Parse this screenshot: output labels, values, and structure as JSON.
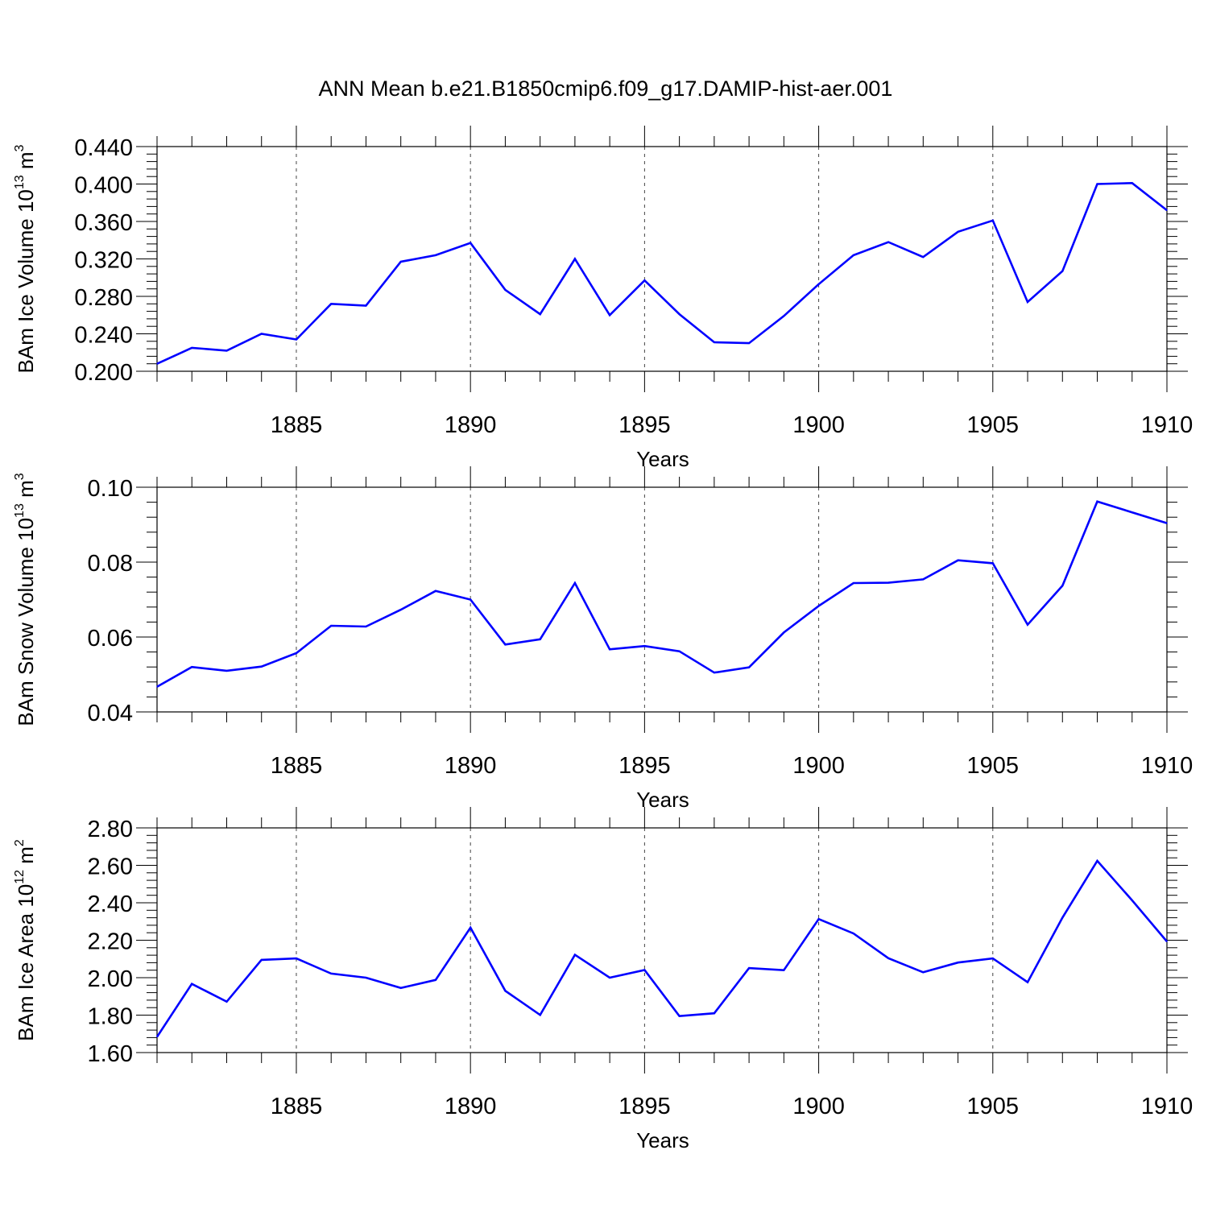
{
  "figure_title": "ANN Mean b.e21.B1850cmip6.f09_g17.DAMIP-hist-aer.001",
  "colors": {
    "line": "#0000ff",
    "axis": "#000000",
    "grid": "#444444"
  },
  "chart_data": [
    {
      "type": "line",
      "ylabel": {
        "main": "BAm Ice Volume 10",
        "exp": "13",
        "unit": " m",
        "unit_exp": "3"
      },
      "xlabel": "Years",
      "xlim": [
        1881,
        1910
      ],
      "ylim": [
        0.2,
        0.44
      ],
      "yticks": [
        0.2,
        0.24,
        0.28,
        0.32,
        0.36,
        0.4,
        0.44
      ],
      "ytick_labels": [
        "0.200",
        "0.240",
        "0.280",
        "0.320",
        "0.360",
        "0.400",
        "0.440"
      ],
      "xticks": [
        1885,
        1890,
        1895,
        1900,
        1905,
        1910
      ],
      "xtick_labels": [
        "1885",
        "1890",
        "1895",
        "1900",
        "1905",
        "1910"
      ],
      "grid": "dashed vertical at major x ticks",
      "x": [
        1881,
        1882,
        1883,
        1884,
        1885,
        1886,
        1887,
        1888,
        1889,
        1890,
        1891,
        1892,
        1893,
        1894,
        1895,
        1896,
        1897,
        1898,
        1899,
        1900,
        1901,
        1902,
        1903,
        1904,
        1905,
        1906,
        1907,
        1908,
        1909,
        1910
      ],
      "values": [
        0.208,
        0.225,
        0.222,
        0.24,
        0.234,
        0.272,
        0.27,
        0.317,
        0.324,
        0.337,
        0.287,
        0.261,
        0.32,
        0.26,
        0.297,
        0.261,
        0.231,
        0.23,
        0.259,
        0.293,
        0.324,
        0.338,
        0.322,
        0.349,
        0.361,
        0.274,
        0.307,
        0.4,
        0.401,
        0.372
      ]
    },
    {
      "type": "line",
      "ylabel": {
        "main": "BAm Snow Volume 10",
        "exp": "13",
        "unit": " m",
        "unit_exp": "3"
      },
      "xlabel": "Years",
      "xlim": [
        1881,
        1910
      ],
      "ylim": [
        0.04,
        0.1
      ],
      "yticks": [
        0.04,
        0.06,
        0.08,
        0.1
      ],
      "ytick_labels": [
        "0.04",
        "0.06",
        "0.08",
        "0.10"
      ],
      "xticks": [
        1885,
        1890,
        1895,
        1900,
        1905,
        1910
      ],
      "xtick_labels": [
        "1885",
        "1890",
        "1895",
        "1900",
        "1905",
        "1910"
      ],
      "grid": "dashed vertical at major x ticks",
      "x": [
        1881,
        1882,
        1883,
        1884,
        1885,
        1886,
        1887,
        1888,
        1889,
        1890,
        1891,
        1892,
        1893,
        1894,
        1895,
        1896,
        1897,
        1898,
        1899,
        1900,
        1901,
        1902,
        1903,
        1904,
        1905,
        1906,
        1907,
        1908,
        1909,
        1910
      ],
      "values": [
        0.0467,
        0.052,
        0.051,
        0.0521,
        0.0557,
        0.063,
        0.0628,
        0.0673,
        0.0723,
        0.07,
        0.058,
        0.0594,
        0.0744,
        0.0567,
        0.0576,
        0.0562,
        0.0505,
        0.0519,
        0.0612,
        0.0683,
        0.0744,
        0.0745,
        0.0754,
        0.0805,
        0.0797,
        0.0633,
        0.0737,
        0.0962,
        0.0933,
        0.0904
      ]
    },
    {
      "type": "line",
      "ylabel": {
        "main": "BAm Ice Area 10",
        "exp": "12",
        "unit": " m",
        "unit_exp": "2"
      },
      "xlabel": "Years",
      "xlim": [
        1881,
        1910
      ],
      "ylim": [
        1.6,
        2.8
      ],
      "yticks": [
        1.6,
        1.8,
        2.0,
        2.2,
        2.4,
        2.6,
        2.8
      ],
      "ytick_labels": [
        "1.60",
        "1.80",
        "2.00",
        "2.20",
        "2.40",
        "2.60",
        "2.80"
      ],
      "xticks": [
        1885,
        1890,
        1895,
        1900,
        1905,
        1910
      ],
      "xtick_labels": [
        "1885",
        "1890",
        "1895",
        "1900",
        "1905",
        "1910"
      ],
      "grid": "dashed vertical at major x ticks",
      "x": [
        1881,
        1882,
        1883,
        1884,
        1885,
        1886,
        1887,
        1888,
        1889,
        1890,
        1891,
        1892,
        1893,
        1894,
        1895,
        1896,
        1897,
        1898,
        1899,
        1900,
        1901,
        1902,
        1903,
        1904,
        1905,
        1906,
        1907,
        1908,
        1909,
        1910
      ],
      "values": [
        1.684,
        1.967,
        1.872,
        2.095,
        2.103,
        2.022,
        2.0,
        1.945,
        1.988,
        2.267,
        1.93,
        1.801,
        2.122,
        2.0,
        2.041,
        1.795,
        1.81,
        2.051,
        2.04,
        2.313,
        2.236,
        2.104,
        2.029,
        2.081,
        2.103,
        1.976,
        2.321,
        2.624,
        2.413,
        2.193
      ]
    }
  ]
}
